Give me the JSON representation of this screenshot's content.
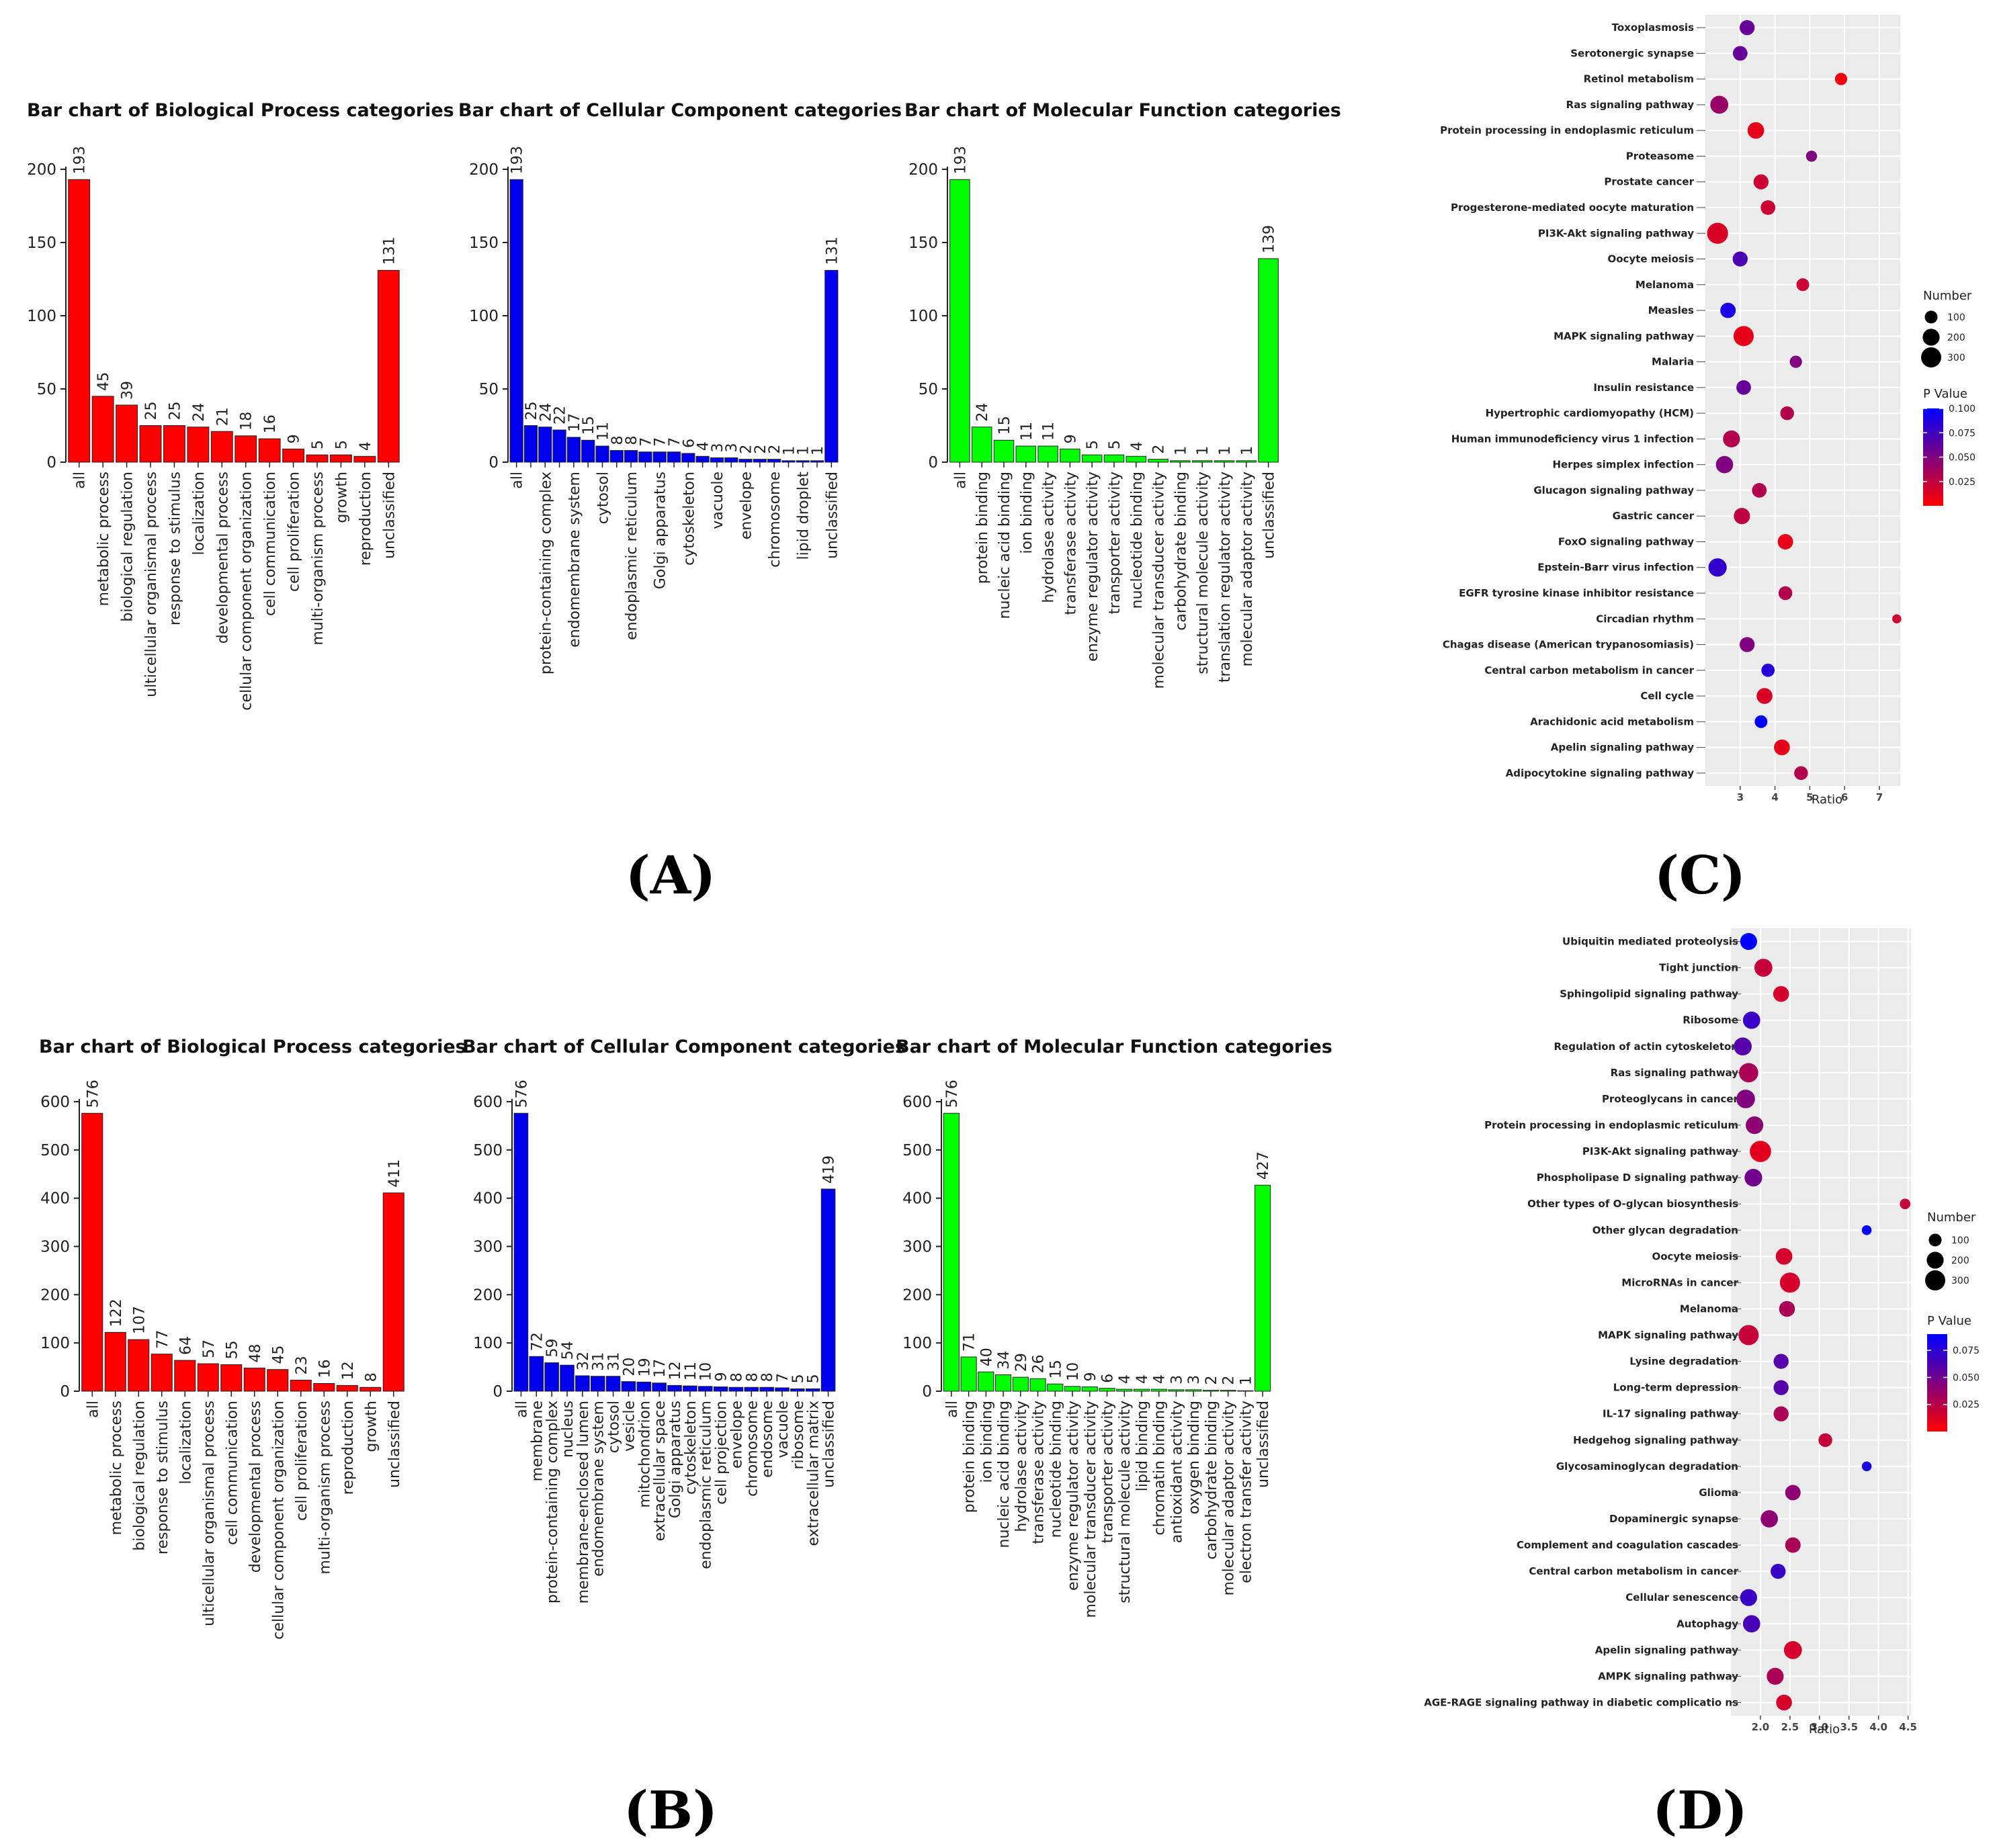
{
  "panel_labels": [
    "(A)",
    "(B)",
    "(C)",
    "(D)"
  ],
  "chart_data": [
    {
      "id": "A-BP",
      "type": "bar",
      "color": "#ff0000",
      "title": "Bar chart of Biological Process categories",
      "ylim": [
        0,
        200
      ],
      "yticks": [
        0,
        50,
        100,
        150,
        200
      ],
      "categories": [
        "all",
        "metabolic process",
        "biological regulation",
        "ulticellular organismal process",
        "response to stimulus",
        "localization",
        "developmental process",
        "cellular component organization",
        "cell communication",
        "cell proliferation",
        "multi-organism process",
        "growth",
        "reproduction",
        "unclassified"
      ],
      "values": [
        193,
        45,
        39,
        25,
        25,
        24,
        21,
        18,
        16,
        9,
        5,
        5,
        4,
        131
      ]
    },
    {
      "id": "A-CC",
      "type": "bar",
      "color": "#0000ee",
      "title": "Bar chart of Cellular Component categories",
      "ylim": [
        0,
        200
      ],
      "yticks": [
        0,
        50,
        100,
        150,
        200
      ],
      "categories": [
        "all",
        "",
        "protein-containing complex",
        "",
        "endomembrane system",
        "",
        "cytosol",
        "",
        "endoplasmic reticulum",
        "",
        "Golgi apparatus",
        "",
        "cytoskeleton",
        "",
        "vacuole",
        "",
        "envelope",
        "",
        "chromosome",
        "",
        "lipid droplet",
        "",
        "unclassified"
      ],
      "values": [
        193,
        25,
        24,
        22,
        17,
        15,
        11,
        8,
        8,
        7,
        7,
        7,
        6,
        4,
        3,
        3,
        2,
        2,
        2,
        1,
        1,
        1,
        131
      ]
    },
    {
      "id": "A-MF",
      "type": "bar",
      "color": "#00ff00",
      "title": "Bar chart of Molecular Function categories",
      "ylim": [
        0,
        200
      ],
      "yticks": [
        0,
        50,
        100,
        150,
        200
      ],
      "categories": [
        "all",
        "protein binding",
        "nucleic acid binding",
        "ion binding",
        "hydrolase activity",
        "transferase activity",
        "enzyme regulator activity",
        "transporter activity",
        "nucleotide binding",
        "molecular transducer activity",
        "carbohydrate binding",
        "structural molecule activity",
        "translation regulator activity",
        "molecular adaptor activity",
        "unclassified"
      ],
      "values": [
        193,
        24,
        15,
        11,
        11,
        9,
        5,
        5,
        4,
        2,
        1,
        1,
        1,
        1,
        139
      ]
    },
    {
      "id": "B-BP",
      "type": "bar",
      "color": "#ff0000",
      "title": "Bar chart of Biological Process categories",
      "ylim": [
        0,
        600
      ],
      "yticks": [
        0,
        100,
        200,
        300,
        400,
        500,
        600
      ],
      "categories": [
        "all",
        "metabolic process",
        "biological regulation",
        "response to stimulus",
        "localization",
        "ulticellular organismal process",
        "cell communication",
        "developmental process",
        "cellular component organization",
        "cell proliferation",
        "multi-organism process",
        "reproduction",
        "growth",
        "unclassified"
      ],
      "values": [
        576,
        122,
        107,
        77,
        64,
        57,
        55,
        48,
        45,
        23,
        16,
        12,
        8,
        411
      ]
    },
    {
      "id": "B-CC",
      "type": "bar",
      "color": "#0000ee",
      "title": "Bar chart of Cellular Component categories",
      "ylim": [
        0,
        600
      ],
      "yticks": [
        0,
        100,
        200,
        300,
        400,
        500,
        600
      ],
      "categories": [
        "all",
        "membrane",
        "protein-containing complex",
        "nucleus",
        "membrane-enclosed lumen",
        "endomembrane system",
        "cytosol",
        "vesicle",
        "mitochondrion",
        "extracellular space",
        "Golgi apparatus",
        "cytoskeleton",
        "endoplasmic reticulum",
        "cell projection",
        "envelope",
        "chromosome",
        "endosome",
        "vacuole",
        "ribosome",
        "extracellular matrix",
        "unclassified"
      ],
      "values": [
        576,
        72,
        59,
        54,
        32,
        31,
        31,
        20,
        19,
        17,
        12,
        11,
        10,
        9,
        8,
        8,
        8,
        7,
        5,
        5,
        419
      ]
    },
    {
      "id": "B-MF",
      "type": "bar",
      "color": "#00ff00",
      "title": "Bar chart of Molecular Function categories",
      "ylim": [
        0,
        600
      ],
      "yticks": [
        0,
        100,
        200,
        300,
        400,
        500,
        600
      ],
      "categories": [
        "all",
        "protein binding",
        "ion binding",
        "nucleic acid binding",
        "hydrolase activity",
        "transferase activity",
        "nucleotide binding",
        "enzyme regulator activity",
        "molecular transducer activity",
        "transporter activity",
        "structural molecule activity",
        "lipid binding",
        "chromatin binding",
        "antioxidant activity",
        "oxygen binding",
        "carbohydrate binding",
        "molecular adaptor activity",
        "electron transfer activity",
        "unclassified"
      ],
      "values": [
        576,
        71,
        40,
        34,
        29,
        26,
        15,
        10,
        9,
        6,
        4,
        4,
        4,
        3,
        3,
        2,
        2,
        1,
        427
      ]
    },
    {
      "id": "C",
      "type": "scatter",
      "xlabel": "Ratio",
      "xlim": [
        2,
        7.6
      ],
      "xticks": [
        3,
        4,
        5,
        6,
        7
      ],
      "size_legend_title": "Number",
      "size_legend": [
        100,
        200,
        300
      ],
      "color_legend_title": "P Value",
      "color_legend": [
        0.1,
        0.075,
        0.05,
        0.025
      ],
      "color_legend_labels": [
        "0.100",
        "0.075",
        "0.050",
        "0.025"
      ],
      "pmax": 0.1,
      "low_color": "#ff0000",
      "high_color": "#0000ff",
      "points": [
        {
          "term": "Toxoplasmosis",
          "ratio": 3.2,
          "number": 150,
          "p": 0.06
        },
        {
          "term": "Serotonergic synapse",
          "ratio": 3.0,
          "number": 140,
          "p": 0.06
        },
        {
          "term": "Retinol metabolism",
          "ratio": 5.9,
          "number": 90,
          "p": 0.005
        },
        {
          "term": "Ras signaling pathway",
          "ratio": 2.4,
          "number": 230,
          "p": 0.04
        },
        {
          "term": "Protein processing in endoplasmic reticulum",
          "ratio": 3.45,
          "number": 190,
          "p": 0.01
        },
        {
          "term": "Proteasome",
          "ratio": 5.05,
          "number": 70,
          "p": 0.05
        },
        {
          "term": "Prostate cancer",
          "ratio": 3.6,
          "number": 150,
          "p": 0.02
        },
        {
          "term": "Progesterone-mediated oocyte maturation",
          "ratio": 3.8,
          "number": 140,
          "p": 0.02
        },
        {
          "term": "PI3K-Akt signaling pathway",
          "ratio": 2.35,
          "number": 330,
          "p": 0.015
        },
        {
          "term": "Oocyte meiosis",
          "ratio": 3.0,
          "number": 150,
          "p": 0.07
        },
        {
          "term": "Melanoma",
          "ratio": 4.8,
          "number": 100,
          "p": 0.02
        },
        {
          "term": "Measles",
          "ratio": 2.65,
          "number": 160,
          "p": 0.09
        },
        {
          "term": "MAPK signaling pathway",
          "ratio": 3.1,
          "number": 300,
          "p": 0.01
        },
        {
          "term": "Malaria",
          "ratio": 4.6,
          "number": 90,
          "p": 0.05
        },
        {
          "term": "Insulin resistance",
          "ratio": 3.1,
          "number": 140,
          "p": 0.06
        },
        {
          "term": "Hypertrophic cardiomyopathy (HCM)",
          "ratio": 4.35,
          "number": 120,
          "p": 0.03
        },
        {
          "term": "Human immunodeficiency virus 1 infection",
          "ratio": 2.75,
          "number": 200,
          "p": 0.03
        },
        {
          "term": "Herpes simplex infection",
          "ratio": 2.55,
          "number": 210,
          "p": 0.05
        },
        {
          "term": "Glucagon signaling pathway",
          "ratio": 3.55,
          "number": 140,
          "p": 0.03
        },
        {
          "term": "Gastric cancer",
          "ratio": 3.05,
          "number": 180,
          "p": 0.025
        },
        {
          "term": "FoxO signaling pathway",
          "ratio": 4.3,
          "number": 160,
          "p": 0.01
        },
        {
          "term": "Epstein-Barr virus infection",
          "ratio": 2.35,
          "number": 240,
          "p": 0.08
        },
        {
          "term": "EGFR tyrosine kinase inhibitor resistance",
          "ratio": 4.3,
          "number": 120,
          "p": 0.03
        },
        {
          "term": "Circadian rhythm",
          "ratio": 7.5,
          "number": 40,
          "p": 0.02
        },
        {
          "term": "Chagas disease (American trypanosomiasis)",
          "ratio": 3.2,
          "number": 150,
          "p": 0.05
        },
        {
          "term": "Central carbon metabolism in cancer",
          "ratio": 3.8,
          "number": 110,
          "p": 0.085
        },
        {
          "term": "Cell cycle",
          "ratio": 3.7,
          "number": 170,
          "p": 0.015
        },
        {
          "term": "Arachidonic acid metabolism",
          "ratio": 3.6,
          "number": 100,
          "p": 0.1
        },
        {
          "term": "Apelin signaling pathway",
          "ratio": 4.2,
          "number": 170,
          "p": 0.01
        },
        {
          "term": "Adipocytokine signaling pathway",
          "ratio": 4.75,
          "number": 120,
          "p": 0.03
        }
      ]
    },
    {
      "id": "D",
      "type": "scatter",
      "xlabel": "Ratio",
      "xlim": [
        1.5,
        4.55
      ],
      "xticks": [
        2.0,
        2.5,
        3.0,
        3.5,
        4.0,
        4.5
      ],
      "xtick_labels": [
        "2.0",
        "2.5",
        "3.0",
        "3.5",
        "4.0",
        "4.5"
      ],
      "size_legend_title": "Number",
      "size_legend": [
        100,
        200,
        300
      ],
      "color_legend_title": "P Value",
      "color_legend": [
        0.075,
        0.05,
        0.025
      ],
      "color_legend_labels": [
        "0.075",
        "0.050",
        "0.025"
      ],
      "pmax": 0.09,
      "low_color": "#ff0000",
      "high_color": "#0000ff",
      "points": [
        {
          "term": "Ubiquitin mediated proteolysis",
          "ratio": 1.8,
          "number": 200,
          "p": 0.09
        },
        {
          "term": "Tight junction",
          "ratio": 2.05,
          "number": 230,
          "p": 0.02
        },
        {
          "term": "Sphingolipid signaling pathway",
          "ratio": 2.35,
          "number": 170,
          "p": 0.015
        },
        {
          "term": "Ribosome",
          "ratio": 1.85,
          "number": 210,
          "p": 0.07
        },
        {
          "term": "Regulation of actin cytoskeleton",
          "ratio": 1.7,
          "number": 230,
          "p": 0.06
        },
        {
          "term": "Ras signaling pathway",
          "ratio": 1.8,
          "number": 270,
          "p": 0.03
        },
        {
          "term": "Proteoglycans in cancer",
          "ratio": 1.75,
          "number": 250,
          "p": 0.045
        },
        {
          "term": "Protein processing in endoplasmic reticulum",
          "ratio": 1.9,
          "number": 220,
          "p": 0.04
        },
        {
          "term": "PI3K-Akt signaling pathway",
          "ratio": 2.0,
          "number": 340,
          "p": 0.01
        },
        {
          "term": "Phospholipase D signaling pathway",
          "ratio": 1.88,
          "number": 220,
          "p": 0.05
        },
        {
          "term": "Other types of O-glycan biosynthesis",
          "ratio": 4.45,
          "number": 60,
          "p": 0.02
        },
        {
          "term": "Other glycan degradation",
          "ratio": 3.8,
          "number": 50,
          "p": 0.09
        },
        {
          "term": "Oocyte meiosis",
          "ratio": 2.4,
          "number": 190,
          "p": 0.015
        },
        {
          "term": "MicroRNAs in cancer",
          "ratio": 2.5,
          "number": 300,
          "p": 0.015
        },
        {
          "term": "Melanoma",
          "ratio": 2.45,
          "number": 170,
          "p": 0.03
        },
        {
          "term": "MAPK signaling pathway",
          "ratio": 1.8,
          "number": 300,
          "p": 0.02
        },
        {
          "term": "Lysine degradation",
          "ratio": 2.35,
          "number": 150,
          "p": 0.06
        },
        {
          "term": "Long-term depression",
          "ratio": 2.35,
          "number": 150,
          "p": 0.06
        },
        {
          "term": "IL-17 signaling pathway",
          "ratio": 2.35,
          "number": 150,
          "p": 0.03
        },
        {
          "term": "Hedgehog signaling pathway",
          "ratio": 3.1,
          "number": 120,
          "p": 0.02
        },
        {
          "term": "Glycosaminoglycan degradation",
          "ratio": 3.8,
          "number": 50,
          "p": 0.08
        },
        {
          "term": "Glioma",
          "ratio": 2.55,
          "number": 160,
          "p": 0.04
        },
        {
          "term": "Dopaminergic synapse",
          "ratio": 2.15,
          "number": 210,
          "p": 0.04
        },
        {
          "term": "Complement and coagulation cascades",
          "ratio": 2.55,
          "number": 160,
          "p": 0.03
        },
        {
          "term": "Central carbon metabolism in cancer",
          "ratio": 2.3,
          "number": 150,
          "p": 0.07
        },
        {
          "term": "Cellular senescence",
          "ratio": 1.8,
          "number": 200,
          "p": 0.07
        },
        {
          "term": "Autophagy",
          "ratio": 1.85,
          "number": 210,
          "p": 0.065
        },
        {
          "term": "Apelin signaling pathway",
          "ratio": 2.55,
          "number": 230,
          "p": 0.015
        },
        {
          "term": "AMPK signaling pathway",
          "ratio": 2.25,
          "number": 200,
          "p": 0.03
        },
        {
          "term": "AGE-RAGE signaling pathway in diabetic complicatio ns",
          "ratio": 2.4,
          "number": 170,
          "p": 0.015
        }
      ]
    }
  ]
}
